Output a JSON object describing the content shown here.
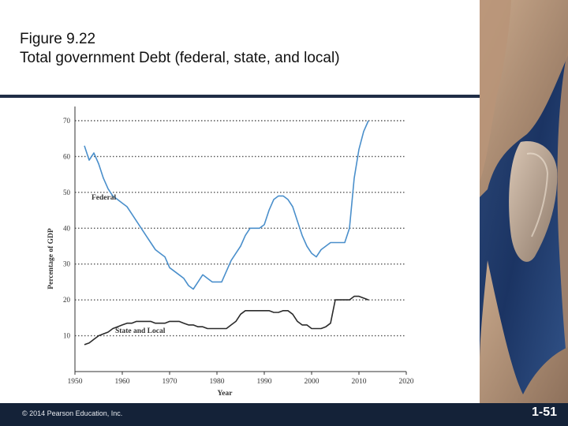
{
  "slide": {
    "title_line1": "Figure 9.22",
    "title_line2": "Total government Debt (federal, state, and local)",
    "copyright": "© 2014 Pearson Education, Inc.",
    "slide_number": "1-51"
  },
  "colors": {
    "federal_line": "#4a8fcb",
    "state_local_line": "#2b2b2b",
    "rule_and_footer": "#142238",
    "gridline": "#555555"
  },
  "chart_data": {
    "type": "line",
    "xlabel": "Year",
    "ylabel": "Percentage of GDP",
    "xlim": [
      1950,
      2020
    ],
    "ylim": [
      0,
      70
    ],
    "x_ticks": [
      1950,
      1960,
      1970,
      1980,
      1990,
      2000,
      2010,
      2020
    ],
    "y_ticks": [
      10,
      20,
      30,
      40,
      50,
      60,
      70
    ],
    "grid": "dotted horizontal",
    "series": [
      {
        "name": "Federal",
        "x": [
          1952,
          1953,
          1954,
          1955,
          1956,
          1957,
          1958,
          1959,
          1960,
          1961,
          1962,
          1963,
          1964,
          1965,
          1966,
          1967,
          1968,
          1969,
          1970,
          1971,
          1972,
          1973,
          1974,
          1975,
          1976,
          1977,
          1978,
          1979,
          1980,
          1981,
          1982,
          1983,
          1984,
          1985,
          1986,
          1987,
          1988,
          1989,
          1990,
          1991,
          1992,
          1993,
          1994,
          1995,
          1996,
          1997,
          1998,
          1999,
          2000,
          2001,
          2002,
          2003,
          2004,
          2005,
          2006,
          2007,
          2008,
          2009,
          2010,
          2011,
          2012
        ],
        "values": [
          63,
          59,
          61,
          58,
          54,
          51,
          49,
          48,
          47,
          46,
          44,
          42,
          40,
          38,
          36,
          34,
          33,
          32,
          29,
          28,
          27,
          26,
          24,
          23,
          25,
          27,
          26,
          25,
          25,
          25,
          28,
          31,
          33,
          35,
          38,
          40,
          40,
          40,
          41,
          45,
          48,
          49,
          49,
          48,
          46,
          42,
          38,
          35,
          33,
          32,
          34,
          35,
          36,
          36,
          36,
          36,
          40,
          54,
          62,
          67,
          70
        ]
      },
      {
        "name": "State and Local",
        "x": [
          1952,
          1953,
          1954,
          1955,
          1956,
          1957,
          1958,
          1959,
          1960,
          1961,
          1962,
          1963,
          1964,
          1965,
          1966,
          1967,
          1968,
          1969,
          1970,
          1971,
          1972,
          1973,
          1974,
          1975,
          1976,
          1977,
          1978,
          1979,
          1980,
          1981,
          1982,
          1983,
          1984,
          1985,
          1986,
          1987,
          1988,
          1989,
          1990,
          1991,
          1992,
          1993,
          1994,
          1995,
          1996,
          1997,
          1998,
          1999,
          2000,
          2001,
          2002,
          2003,
          2004,
          2005,
          2006,
          2007,
          2008,
          2009,
          2010,
          2011,
          2012
        ],
        "values": [
          7.5,
          8,
          9,
          10,
          10.5,
          11,
          12,
          12.5,
          13,
          13.5,
          13.5,
          14,
          14,
          14,
          14,
          13.5,
          13.5,
          13.5,
          14,
          14,
          14,
          13.5,
          13,
          13,
          12.5,
          12.5,
          12,
          12,
          12,
          12,
          12,
          13,
          14,
          16,
          17,
          17,
          17,
          17,
          17,
          17,
          16.5,
          16.5,
          17,
          17,
          16,
          14,
          13,
          13,
          12,
          12,
          12,
          12.5,
          13.5,
          20,
          20,
          20,
          20,
          21,
          21,
          20.5,
          20
        ]
      }
    ]
  }
}
